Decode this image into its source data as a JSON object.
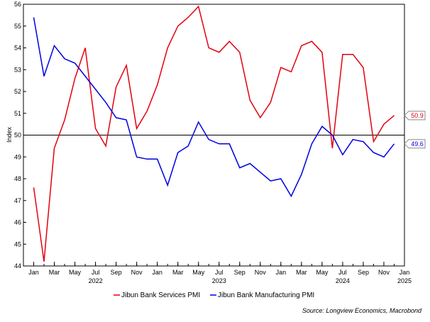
{
  "chart_data": {
    "type": "line",
    "ylabel": "Index",
    "ylim": [
      44,
      56
    ],
    "yticks": [
      44,
      45,
      46,
      47,
      48,
      49,
      50,
      51,
      52,
      53,
      54,
      55,
      56
    ],
    "reference_line": 50,
    "x_month_ticks": [
      {
        "label": "Jan",
        "x": "2022-01"
      },
      {
        "label": "Mar",
        "x": "2022-03"
      },
      {
        "label": "May",
        "x": "2022-05"
      },
      {
        "label": "Jul",
        "x": "2022-07"
      },
      {
        "label": "Sep",
        "x": "2022-09"
      },
      {
        "label": "Nov",
        "x": "2022-11"
      },
      {
        "label": "Jan",
        "x": "2023-01"
      },
      {
        "label": "Mar",
        "x": "2023-03"
      },
      {
        "label": "May",
        "x": "2023-05"
      },
      {
        "label": "Jul",
        "x": "2023-07"
      },
      {
        "label": "Sep",
        "x": "2023-09"
      },
      {
        "label": "Nov",
        "x": "2023-11"
      },
      {
        "label": "Jan",
        "x": "2024-01"
      },
      {
        "label": "Mar",
        "x": "2024-03"
      },
      {
        "label": "May",
        "x": "2024-05"
      },
      {
        "label": "Jul",
        "x": "2024-07"
      },
      {
        "label": "Sep",
        "x": "2024-09"
      },
      {
        "label": "Nov",
        "x": "2024-11"
      },
      {
        "label": "Jan",
        "x": "2025-01"
      }
    ],
    "x_year_labels": [
      {
        "label": "2022",
        "x": "2022-07"
      },
      {
        "label": "2023",
        "x": "2023-07"
      },
      {
        "label": "2024",
        "x": "2024-07"
      },
      {
        "label": "2025",
        "x": "2025-01"
      }
    ],
    "x": [
      "2022-01",
      "2022-02",
      "2022-03",
      "2022-04",
      "2022-05",
      "2022-06",
      "2022-07",
      "2022-08",
      "2022-09",
      "2022-10",
      "2022-11",
      "2022-12",
      "2023-01",
      "2023-02",
      "2023-03",
      "2023-04",
      "2023-05",
      "2023-06",
      "2023-07",
      "2023-08",
      "2023-09",
      "2023-10",
      "2023-11",
      "2023-12",
      "2024-01",
      "2024-02",
      "2024-03",
      "2024-04",
      "2024-05",
      "2024-06",
      "2024-07",
      "2024-08",
      "2024-09",
      "2024-10",
      "2024-11",
      "2024-12"
    ],
    "x_range": [
      "2021-12",
      "2025-01"
    ],
    "series": [
      {
        "name": "Jibun Bank Services PMI",
        "color": "#e3000f",
        "end_label": "50.9",
        "values": [
          47.6,
          44.2,
          49.4,
          50.7,
          52.6,
          54.0,
          50.3,
          49.5,
          52.2,
          53.2,
          50.3,
          51.1,
          52.3,
          54.0,
          55.0,
          55.4,
          55.9,
          54.0,
          53.8,
          54.3,
          53.8,
          51.6,
          50.8,
          51.5,
          53.1,
          52.9,
          54.1,
          54.3,
          53.8,
          49.4,
          53.7,
          53.7,
          53.1,
          49.7,
          50.5,
          50.9
        ]
      },
      {
        "name": "Jibun Bank Manufacturing PMI",
        "color": "#0000e0",
        "end_label": "49.6",
        "values": [
          55.4,
          52.7,
          54.1,
          53.5,
          53.3,
          52.7,
          52.1,
          51.5,
          50.8,
          50.7,
          49.0,
          48.9,
          48.9,
          47.7,
          49.2,
          49.5,
          50.6,
          49.8,
          49.6,
          49.6,
          48.5,
          48.7,
          48.3,
          47.9,
          48.0,
          47.2,
          48.2,
          49.6,
          50.4,
          50.0,
          49.1,
          49.8,
          49.7,
          49.2,
          49.0,
          49.6
        ]
      }
    ],
    "legend_position": "bottom-center",
    "grid": false,
    "source": "Source: Longview Economics, Macrobond"
  }
}
